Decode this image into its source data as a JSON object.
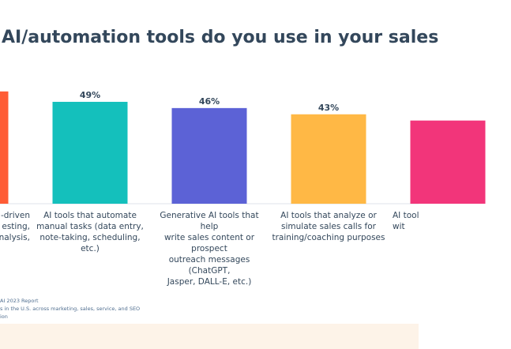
{
  "chart_data": {
    "type": "bar",
    "title": "AI/automation tools do you use in your sales",
    "categories": [
      "-driven\nesting,\nnalysis,",
      "AI tools that automate\nmanual tasks (data entry,\nnote-taking, scheduling, etc.)",
      "Generative AI tools that help\nwrite sales content or prospect\noutreach messages (ChatGPT,\nJasper, DALL-E, etc.)",
      "AI tools that analyze or\nsimulate sales calls for\ntraining/coaching purposes",
      "AI tool\nwit"
    ],
    "values": [
      54,
      49,
      46,
      43,
      40
    ],
    "value_labels": [
      null,
      "49%",
      "46%",
      "43%",
      null
    ],
    "colors": [
      "#ff5c35",
      "#14c0bc",
      "#5c62d6",
      "#ffb845",
      "#f2357a"
    ],
    "ylim": [
      0,
      60
    ],
    "notes": [
      "AI 2023 Report",
      "s in the U.S. across marketing, sales, service, and SEO",
      "ion"
    ]
  }
}
